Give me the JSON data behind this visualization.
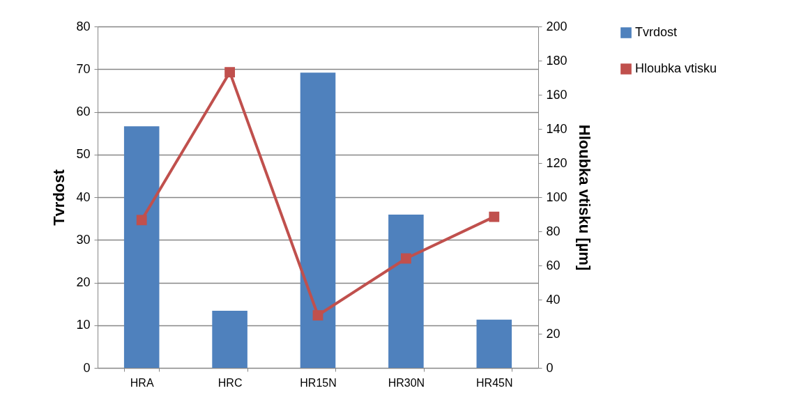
{
  "chart_data": {
    "type": "bar",
    "categories": [
      "HRA",
      "HRC",
      "HR15N",
      "HR30N",
      "HR45N"
    ],
    "ylabel": "Tvrdost",
    "y2label": "Hloubka vtisku [µm]",
    "ylim": [
      0,
      80
    ],
    "yticks": [
      0,
      10,
      20,
      30,
      40,
      50,
      60,
      70,
      80
    ],
    "y2lim": [
      0,
      200
    ],
    "y2ticks": [
      0,
      20,
      40,
      60,
      80,
      100,
      120,
      140,
      160,
      180,
      200
    ],
    "grid": "y",
    "legend": "right",
    "marker": "square",
    "series": [
      {
        "name": "Tvrdost",
        "color": "#4f81bd",
        "values": [
          56.6,
          13.4,
          69.2,
          35.9,
          11.3
        ]
      },
      {
        "name": "Hloubka vtisku",
        "type": "line",
        "axis": "y2",
        "color": "#c0504d",
        "values": [
          86.6,
          173.2,
          30.8,
          64.1,
          88.5
        ]
      }
    ]
  }
}
